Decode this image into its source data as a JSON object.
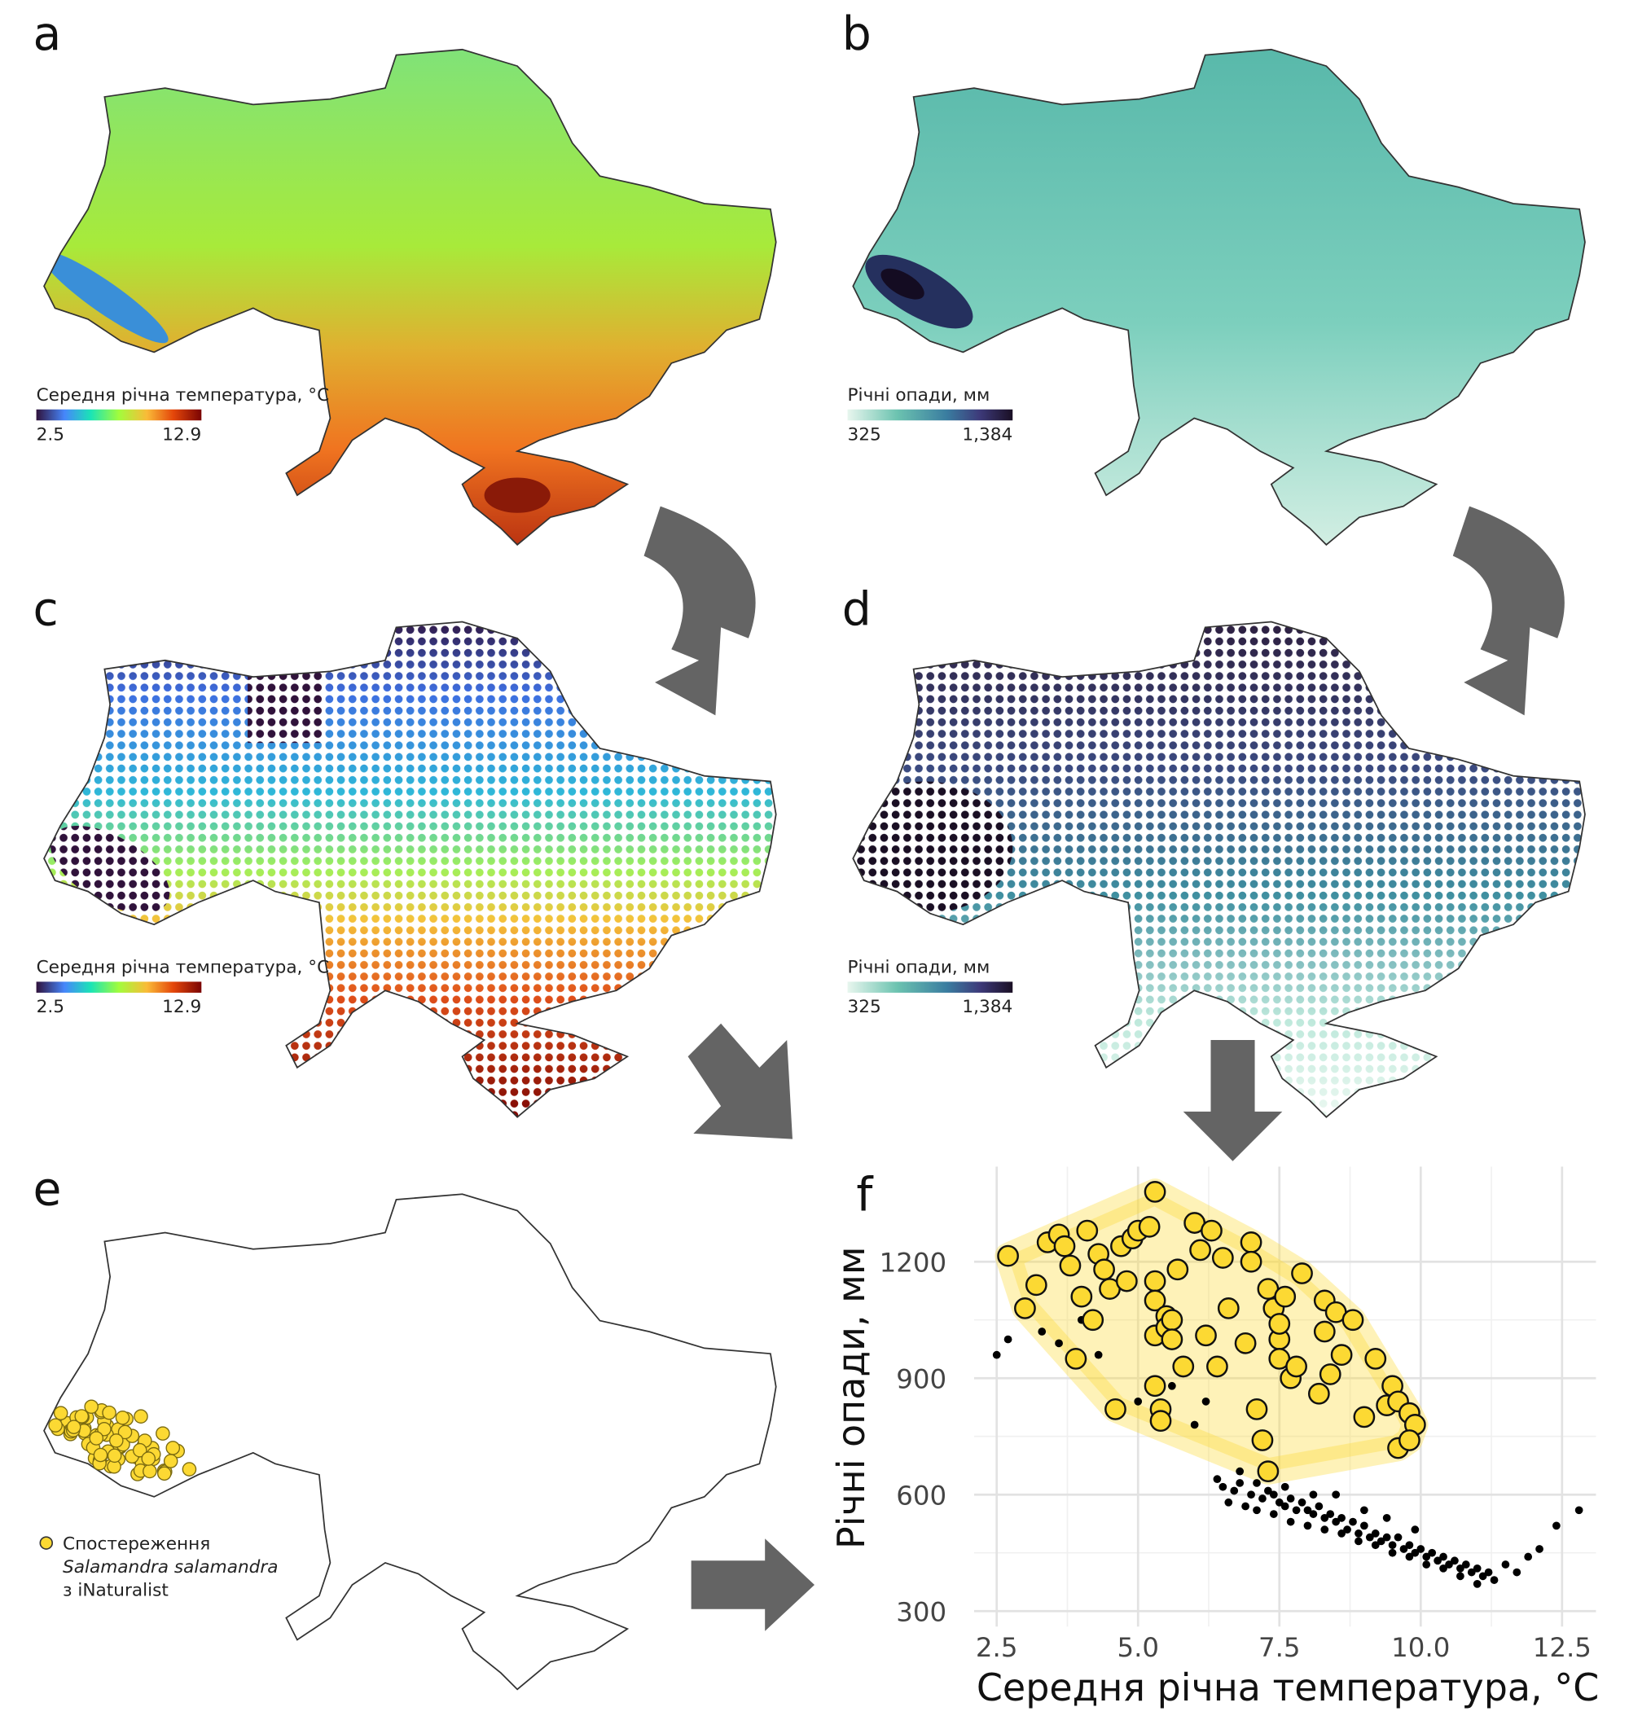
{
  "panels": {
    "a": {
      "label": "a",
      "legend_title": "Середня річна температура, °C",
      "legend_min": "2.5",
      "legend_max": "12.9"
    },
    "b": {
      "label": "b",
      "legend_title": "Річні опади, мм",
      "legend_min": "325",
      "legend_max": "1,384"
    },
    "c": {
      "label": "c",
      "legend_title": "Середня річна температура, °C",
      "legend_min": "2.5",
      "legend_max": "12.9"
    },
    "d": {
      "label": "d",
      "legend_title": "Річні опади, мм",
      "legend_min": "325",
      "legend_max": "1,384"
    },
    "e": {
      "label": "e",
      "legend": [
        "Спостереження",
        "Salamandra salamandra",
        "з iNaturalist"
      ]
    },
    "f": {
      "label": "f"
    }
  },
  "chart_data": {
    "type": "scatter",
    "x_label": "Середня річна температура, °C",
    "y_label": "Річні опади, мм",
    "xlim": [
      2.1,
      13.1
    ],
    "ylim": [
      260,
      1445
    ],
    "xticks": [
      2.5,
      {
        "value": 5,
        "label": "5.0"
      },
      7.5,
      {
        "value": 10,
        "label": "10.0"
      },
      12.5
    ],
    "yticks": [
      300,
      600,
      900,
      1200
    ],
    "grid": true,
    "series": [
      {
        "color": "#000000",
        "x": [
          2.5,
          2.7,
          3.3,
          3.6,
          4.0,
          4.3,
          4.6,
          5.0,
          5.2,
          5.6,
          6.0,
          6.2,
          6.4,
          6.5,
          6.7,
          6.8,
          7.0,
          7.1,
          7.2,
          7.3,
          7.4,
          7.5,
          7.6,
          7.7,
          7.8,
          7.9,
          8.0,
          8.1,
          8.2,
          8.3,
          8.4,
          8.5,
          8.6,
          8.7,
          8.8,
          8.9,
          9.0,
          9.1,
          9.2,
          9.3,
          9.4,
          9.5,
          9.6,
          9.7,
          9.8,
          9.9,
          10.0,
          10.1,
          10.2,
          10.3,
          10.4,
          10.5,
          10.6,
          10.7,
          10.8,
          10.9,
          11.0,
          11.1,
          11.2,
          11.3,
          11.5,
          11.7,
          11.9,
          12.1,
          12.4,
          12.8,
          6.6,
          6.9,
          7.1,
          7.4,
          7.7,
          8.0,
          8.3,
          8.6,
          8.9,
          9.2,
          9.5,
          9.8,
          10.1,
          10.4,
          10.7,
          11.0,
          6.8,
          7.2,
          7.6,
          8.1,
          8.5,
          9.0,
          9.4,
          9.9
        ],
        "values": [
          960,
          1000,
          1020,
          990,
          1050,
          960,
          1120,
          840,
          880,
          880,
          780,
          840,
          640,
          620,
          610,
          630,
          600,
          630,
          590,
          610,
          600,
          580,
          570,
          590,
          560,
          580,
          560,
          550,
          570,
          540,
          550,
          530,
          540,
          510,
          530,
          500,
          520,
          490,
          500,
          480,
          490,
          470,
          490,
          460,
          470,
          450,
          460,
          440,
          450,
          430,
          440,
          420,
          430,
          410,
          420,
          400,
          410,
          390,
          400,
          380,
          420,
          400,
          440,
          460,
          520,
          560,
          580,
          570,
          560,
          550,
          530,
          520,
          510,
          500,
          480,
          470,
          450,
          440,
          420,
          410,
          390,
          370,
          660,
          650,
          620,
          600,
          600,
          560,
          540,
          510
        ]
      },
      {
        "color": "#fcd933",
        "hull": true,
        "x": [
          2.7,
          3.0,
          3.2,
          3.4,
          3.6,
          3.7,
          3.8,
          3.9,
          4.0,
          4.1,
          4.2,
          4.3,
          4.4,
          4.5,
          4.6,
          4.7,
          4.8,
          4.9,
          5.0,
          5.2,
          5.3,
          5.3,
          5.3,
          5.3,
          5.3,
          5.4,
          5.4,
          5.5,
          5.5,
          5.6,
          5.6,
          5.7,
          5.8,
          6.0,
          6.1,
          6.2,
          6.3,
          6.4,
          6.5,
          6.6,
          6.9,
          7.0,
          7.0,
          7.1,
          7.2,
          7.3,
          7.3,
          7.4,
          7.5,
          7.5,
          7.5,
          7.6,
          7.7,
          7.8,
          7.9,
          8.2,
          8.3,
          8.3,
          8.4,
          8.5,
          8.6,
          8.8,
          9.0,
          9.2,
          9.4,
          9.5,
          9.6,
          9.6,
          9.8,
          9.9,
          9.8
        ],
        "values": [
          1215,
          1080,
          1140,
          1250,
          1270,
          1240,
          1190,
          950,
          1110,
          1280,
          1050,
          1220,
          1180,
          1130,
          820,
          1240,
          1150,
          1260,
          1280,
          1290,
          1380,
          1150,
          1100,
          1010,
          880,
          820,
          790,
          1060,
          1030,
          1050,
          1000,
          1180,
          930,
          1300,
          1230,
          1010,
          1280,
          930,
          1210,
          1080,
          990,
          1250,
          1200,
          820,
          740,
          660,
          1130,
          1080,
          1000,
          1040,
          950,
          1110,
          900,
          930,
          1170,
          860,
          1100,
          1020,
          910,
          1070,
          960,
          1050,
          800,
          950,
          830,
          880,
          840,
          720,
          810,
          780,
          740
        ]
      }
    ]
  }
}
